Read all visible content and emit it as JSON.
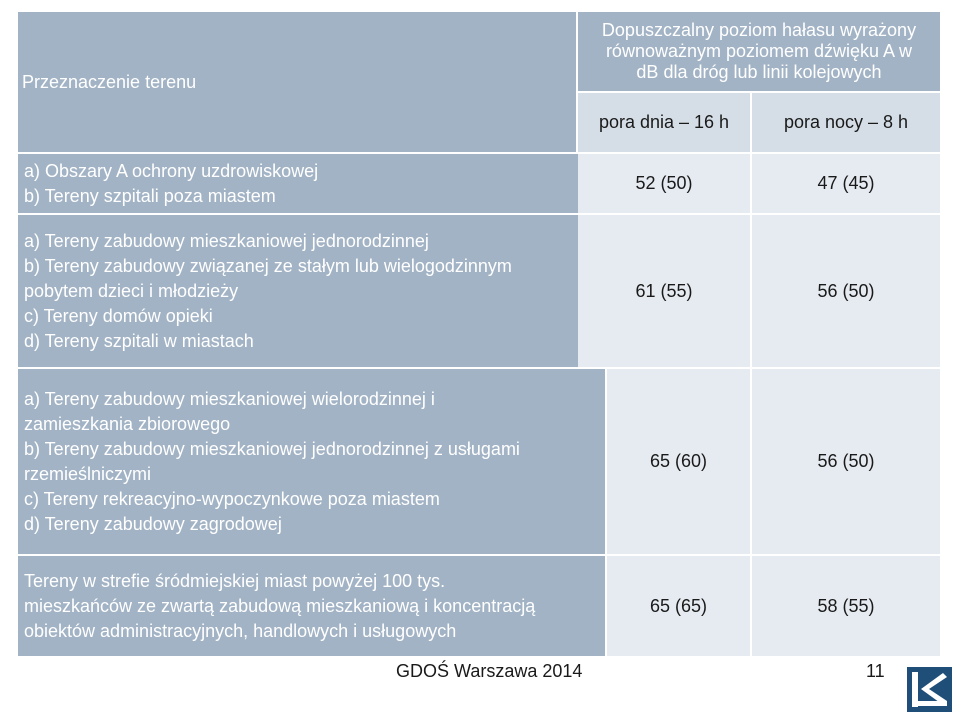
{
  "table": {
    "header": {
      "col1": "Przeznaczenie terenu",
      "col2_top_lines": [
        "Dopuszczalny poziom hałasu wyrażony",
        "równoważnym poziomem dźwięku A w",
        "dB dla dróg lub linii kolejowych"
      ],
      "sub_day": "pora dnia – 16 h",
      "sub_night": "pora nocy – 8 h"
    },
    "rows": [
      {
        "lines": [
          "a) Obszary A ochrony uzdrowiskowej",
          "b) Tereny szpitali poza miastem"
        ],
        "day": "52 (50)",
        "night": "47 (45)"
      },
      {
        "lines": [
          "a) Tereny zabudowy mieszkaniowej jednorodzinnej",
          "b) Tereny zabudowy związanej ze stałym lub wielogodzinnym",
          "pobytem dzieci i młodzieży",
          "c) Tereny domów opieki",
          "d) Tereny szpitali w miastach"
        ],
        "day": "61 (55)",
        "night": "56 (50)"
      },
      {
        "lines": [
          "a) Tereny zabudowy mieszkaniowej wielorodzinnej i",
          "zamieszkania zbiorowego",
          "b) Tereny zabudowy mieszkaniowej jednorodzinnej z usługami",
          "rzemieślniczymi",
          "c) Tereny rekreacyjno-wypoczynkowe poza miastem",
          "d) Tereny zabudowy zagrodowej"
        ],
        "day": "65 (60)",
        "night": "56 (50)"
      },
      {
        "lines": [
          "Tereny w strefie śródmiejskiej miast powyżej 100 tys.",
          "mieszkańców ze zwartą zabudową mieszkaniową i koncentracją",
          "obiektów administracyjnych, handlowych i usługowych"
        ],
        "day": "65 (65)",
        "night": "58 (55)"
      }
    ]
  },
  "footer": {
    "source": "GDOŚ Warszawa 2014",
    "page_number": "11"
  },
  "colors": {
    "header_bg": "#a2b3c5",
    "subheader_bg": "#d5dee7",
    "cell_bg": "#e6ebf1",
    "logo": "#1f4e79"
  }
}
